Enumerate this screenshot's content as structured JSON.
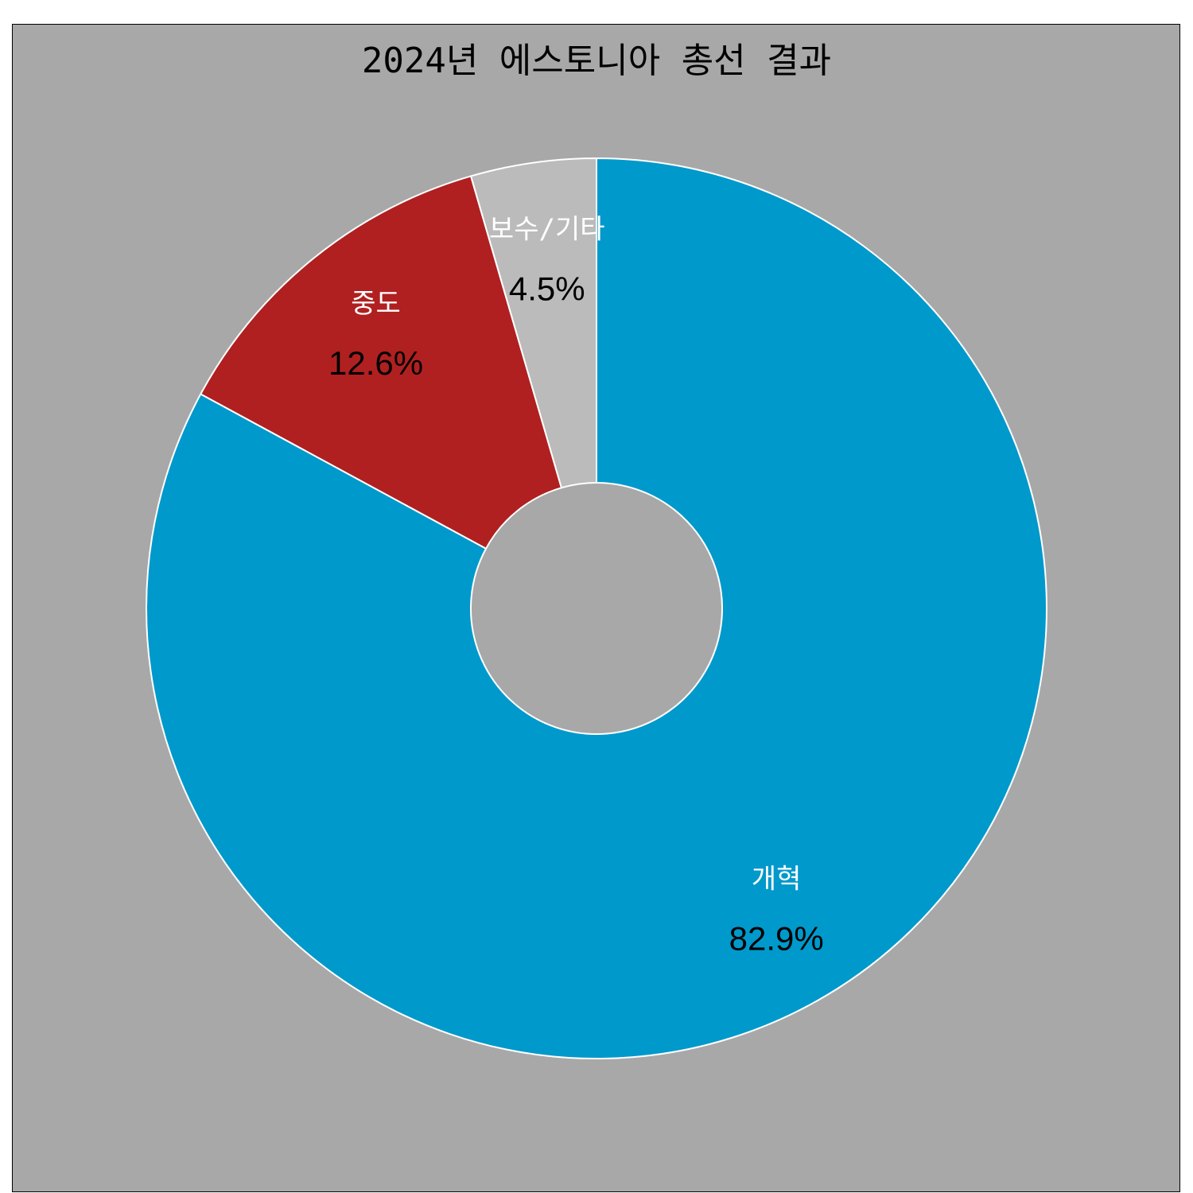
{
  "chart_data": {
    "type": "pie",
    "donut": true,
    "title": "2024년 에스토니아 총선 결과",
    "categories": [
      "개혁",
      "중도",
      "보수/기타"
    ],
    "values": [
      82.9,
      12.6,
      4.5
    ],
    "value_labels": [
      "82.9%",
      "12.6%",
      "4.5%"
    ],
    "colors": [
      "#0099cc",
      "#b02020",
      "#bbbbbb"
    ],
    "legend": "none",
    "background": "#a8a8a8",
    "start_angle_deg": 0,
    "direction": "clockwise"
  }
}
